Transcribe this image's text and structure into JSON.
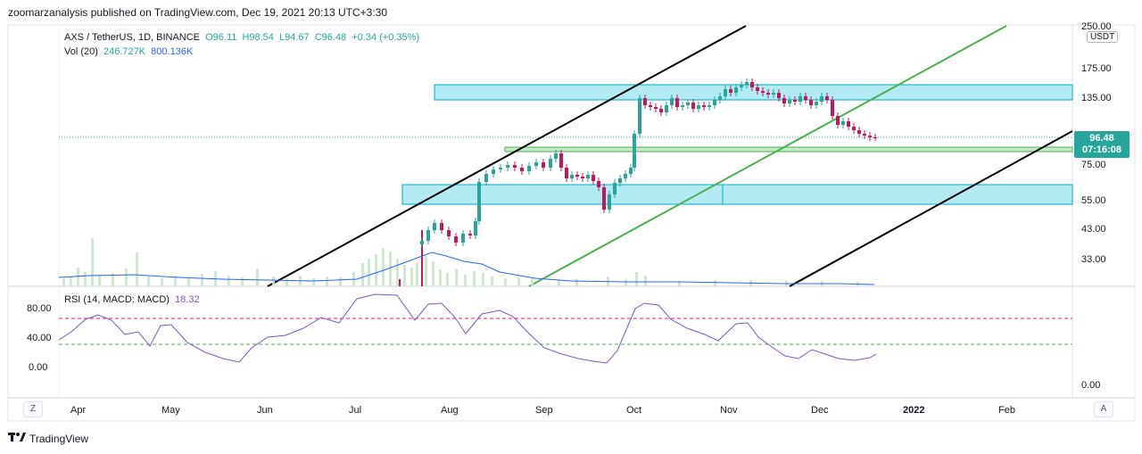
{
  "header": {
    "publisher_text": "zoomarzanalysis published on TradingView.com, Dec 19, 2021 20:13 UTC+3:30"
  },
  "legend": {
    "symbol": "AXS / TetherUS, 1D, BINANCE",
    "open": "O96.11",
    "high": "H98.54",
    "low": "L94.67",
    "close": "C96.48",
    "change": "+0.34 (+0.35%)",
    "volume_label": "Vol (20)",
    "volume_value": "246.727K",
    "volume_ma": "800.136K",
    "rsi_label": "RSI (14, MACD: MACD)",
    "rsi_value": "18.32"
  },
  "price_axis": {
    "unit": "USDT",
    "top_partial": "250.00",
    "ticks": [
      "175.00",
      "135.00",
      "75.00",
      "55.00",
      "43.00",
      "33.00"
    ],
    "last_price": "96.48",
    "countdown": "07:16:08"
  },
  "rsi_axis": {
    "ticks": [
      "80.00",
      "40.00",
      "0.00"
    ],
    "bottom_tick": "0.00"
  },
  "time_axis": {
    "months": [
      "Apr",
      "May",
      "Jun",
      "Jul",
      "Aug",
      "Sep",
      "Oct",
      "Nov",
      "Dec",
      "2022",
      "Feb"
    ]
  },
  "buttons": {
    "scale_z": "Z",
    "scale_a": "A"
  },
  "footer": {
    "brand": "TradingView"
  },
  "chart_data": {
    "type": "candlestick",
    "symbol": "AXS / TetherUS",
    "interval": "1D",
    "exchange": "BINANCE",
    "last": {
      "open": 96.11,
      "high": 98.54,
      "low": 94.67,
      "close": 96.48
    },
    "y_axis_ticks": [
      33,
      43,
      55,
      75,
      135,
      175,
      250
    ],
    "rsi": {
      "period": 14,
      "last": 18.32,
      "upper_band": 70,
      "lower_band": 30
    },
    "volume": {
      "period": 20,
      "value": "246.727K",
      "ma": "800.136K"
    },
    "colors": {
      "up": "#26a69a",
      "down": "#c2185b",
      "zone_fill": "#b2ebf2",
      "zone_border": "#00acc1",
      "channel_black": "#000000",
      "channel_green": "#4caf50",
      "volume_ma": "#2962ff",
      "rsi_line": "#7e57c2",
      "rsi_upper": "#e91e63",
      "rsi_lower": "#4caf50"
    }
  }
}
